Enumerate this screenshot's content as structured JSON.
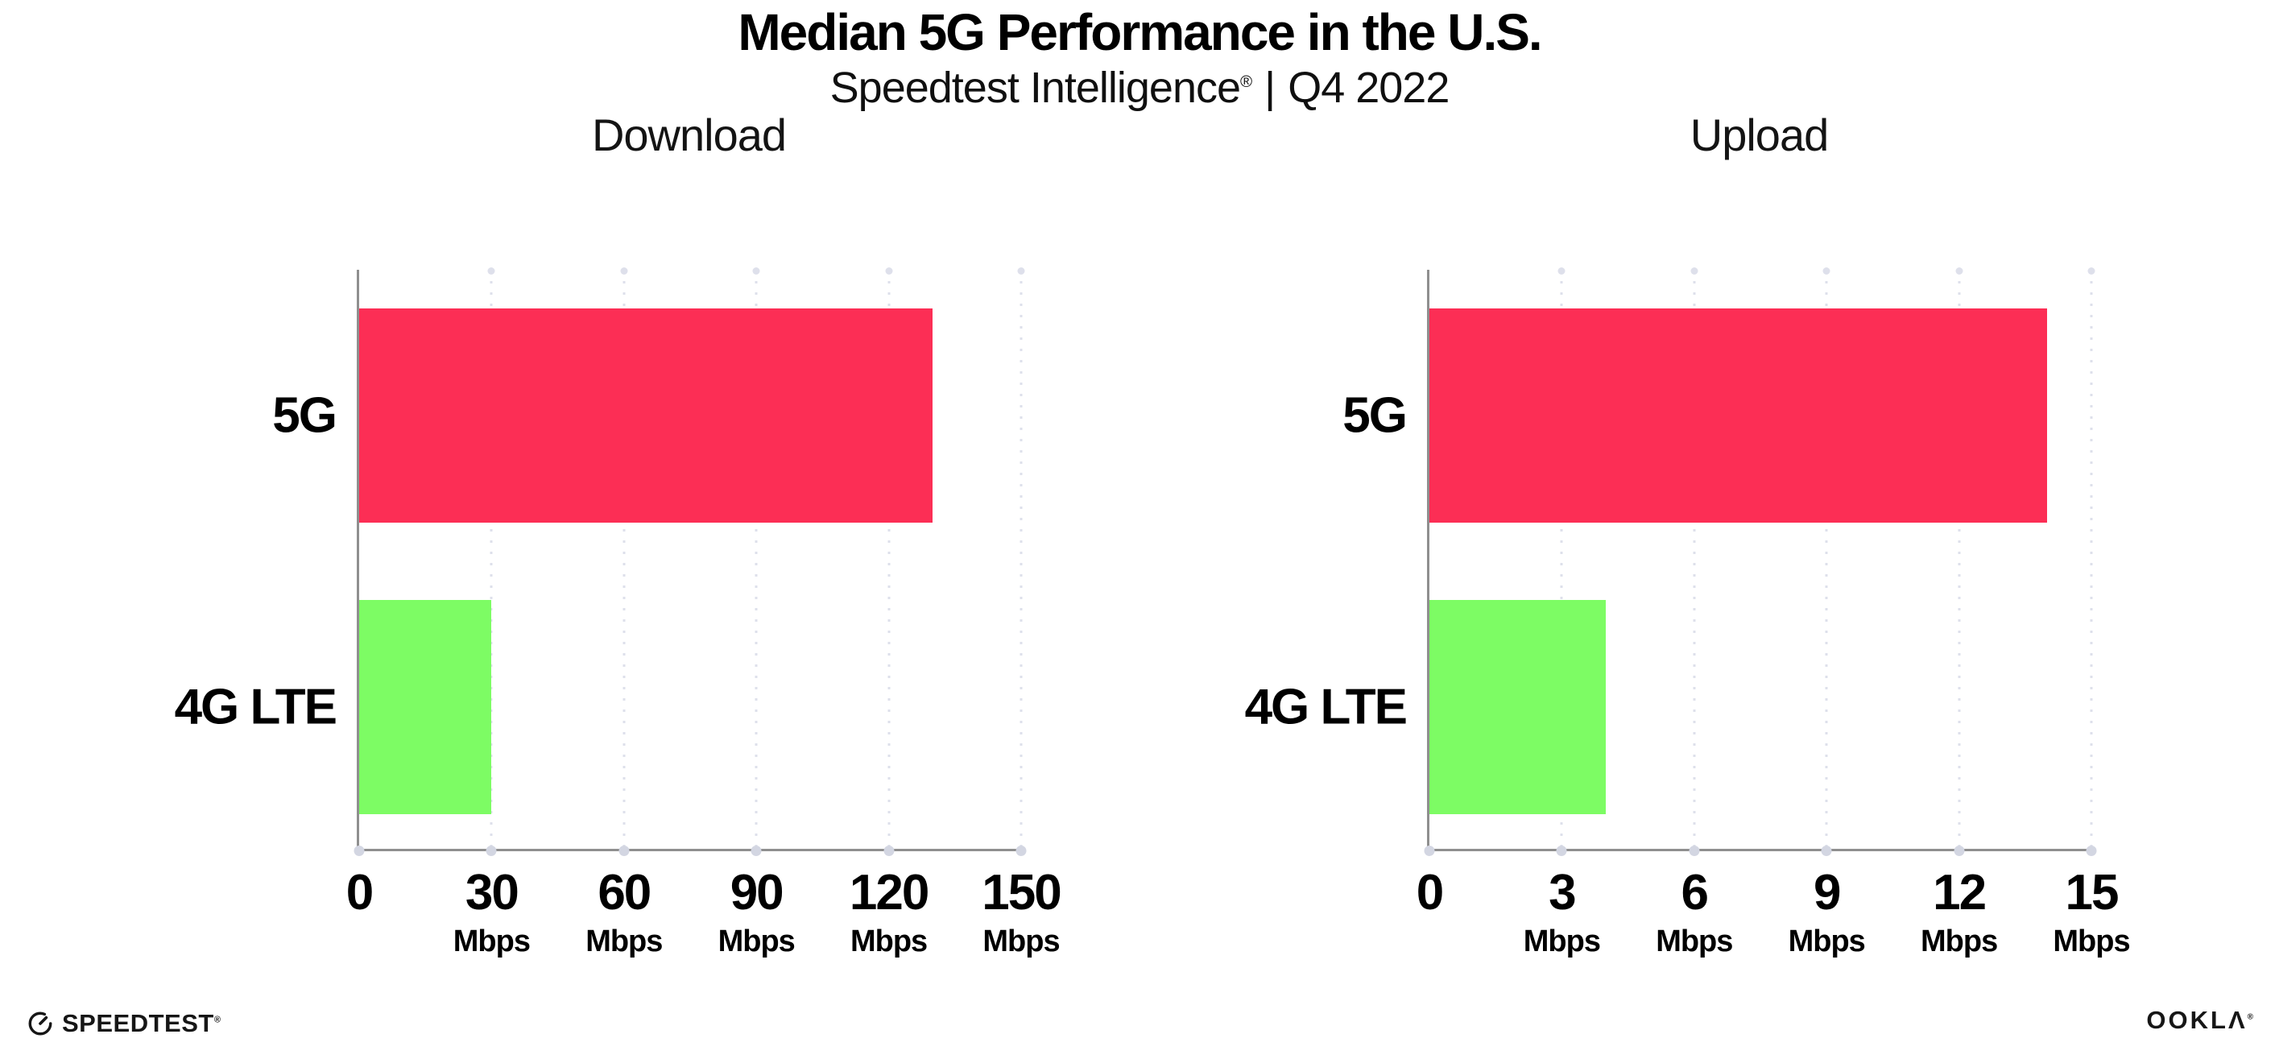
{
  "header": {
    "title": "Median 5G Performance in the U.S.",
    "subtitle_brand": "Speedtest Intelligence",
    "subtitle_reg": "®",
    "subtitle_sep": "|",
    "subtitle_period": "Q4 2022"
  },
  "charts": [
    {
      "id": "download",
      "title": "Download",
      "unit": "Mbps",
      "xmax": 150,
      "ticks": [
        0,
        30,
        60,
        90,
        120,
        150
      ],
      "categories": [
        "5G",
        "4G LTE"
      ],
      "values": [
        130,
        30
      ],
      "colors": [
        "#fc2e55",
        "#7dfc64"
      ]
    },
    {
      "id": "upload",
      "title": "Upload",
      "unit": "Mbps",
      "xmax": 15,
      "ticks": [
        0,
        3,
        6,
        9,
        12,
        15
      ],
      "categories": [
        "5G",
        "4G LTE"
      ],
      "values": [
        14,
        4
      ],
      "colors": [
        "#fc2e55",
        "#7dfc64"
      ]
    }
  ],
  "chart_data": [
    {
      "type": "bar",
      "orientation": "horizontal",
      "title": "Download",
      "categories": [
        "5G",
        "4G LTE"
      ],
      "values": [
        130,
        30
      ],
      "unit": "Mbps",
      "xlabel": "Mbps",
      "ylabel": "",
      "xlim": [
        0,
        150
      ],
      "ticks": [
        0,
        30,
        60,
        90,
        120,
        150
      ],
      "grid": "dotted-vertical",
      "bar_colors": [
        "#fc2e55",
        "#7dfc64"
      ]
    },
    {
      "type": "bar",
      "orientation": "horizontal",
      "title": "Upload",
      "categories": [
        "5G",
        "4G LTE"
      ],
      "values": [
        14,
        4
      ],
      "unit": "Mbps",
      "xlabel": "Mbps",
      "ylabel": "",
      "xlim": [
        0,
        15
      ],
      "ticks": [
        0,
        3,
        6,
        9,
        12,
        15
      ],
      "grid": "dotted-vertical",
      "bar_colors": [
        "#fc2e55",
        "#7dfc64"
      ]
    }
  ],
  "footer": {
    "speedtest_label": "SPEEDTEST",
    "speedtest_mark": "®",
    "ookla_label": "OOKLΛ",
    "ookla_mark": "®"
  },
  "colors": {
    "bar_5g": "#fc2e55",
    "bar_4g_lte": "#7dfc64",
    "axis_line": "#8f8f8f",
    "gridline": "#dee0eb",
    "text": "#000000",
    "background": "#ffffff"
  }
}
